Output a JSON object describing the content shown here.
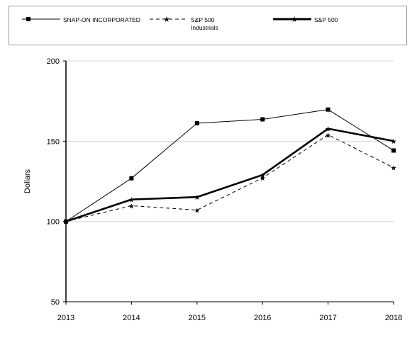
{
  "chart_data": {
    "type": "line",
    "title": "",
    "xlabel": "",
    "ylabel": "Dollars",
    "x": [
      "2013",
      "2014",
      "2015",
      "2016",
      "2017",
      "2018"
    ],
    "ylim": [
      50,
      200
    ],
    "yticks": [
      "50",
      "100",
      "150",
      "200"
    ],
    "grid": "horizontal",
    "legend_position": "top",
    "series": [
      {
        "name": "SNAP-ON INCORPORATED",
        "values": [
          100,
          126.9,
          161.2,
          163.6,
          169.7,
          144.2
        ],
        "style": "thin-solid-square-marker",
        "color": "#000000"
      },
      {
        "name": "S&P 500 Industrials",
        "legend_lines": [
          "S&P 500",
          "Industrials"
        ],
        "values": [
          100,
          109.8,
          107.1,
          127.1,
          154.0,
          133.5
        ],
        "style": "dashed-star-marker",
        "color": "#000000"
      },
      {
        "name": "S&P 500",
        "values": [
          100,
          113.7,
          115.2,
          129.0,
          157.8,
          150.1
        ],
        "style": "thick-solid-star-marker",
        "color": "#000000"
      }
    ]
  }
}
